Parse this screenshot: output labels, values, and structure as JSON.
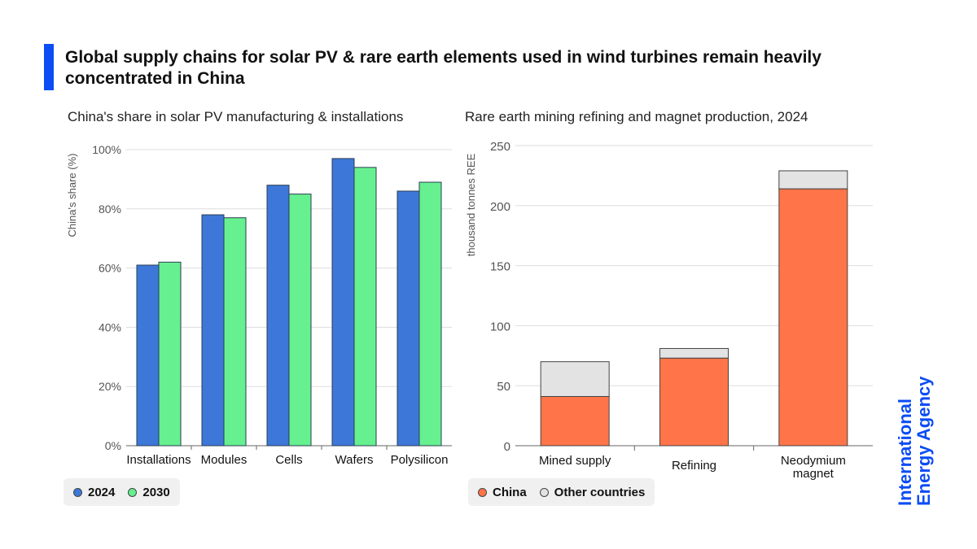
{
  "title": "Global supply chains for solar PV & rare earth elements used in wind turbines remain heavily concentrated in China",
  "logo": "International Energy Agency",
  "colors": {
    "accent": "#0b4cf5",
    "s2024": "#3d78d8",
    "s2030": "#66f08f",
    "china": "#ff7549",
    "other": "#e3e3e3"
  },
  "chart_data": [
    {
      "type": "bar",
      "title": "China's share in solar PV manufacturing & installations",
      "ylabel": "China's share (%)",
      "ylim": [
        0,
        100
      ],
      "yticks": [
        "0%",
        "20%",
        "40%",
        "60%",
        "80%",
        "100%"
      ],
      "grid": true,
      "legend": "bottom-left",
      "categories": [
        "Installations",
        "Modules",
        "Cells",
        "Wafers",
        "Polysilicon"
      ],
      "series": [
        {
          "name": "2024",
          "values": [
            61,
            78,
            88,
            97,
            86
          ]
        },
        {
          "name": "2030",
          "values": [
            62,
            77,
            85,
            94,
            89
          ]
        }
      ]
    },
    {
      "type": "bar",
      "stacked": true,
      "title": "Rare earth mining refining and magnet production, 2024",
      "ylabel": "thousand tonnes REE",
      "ylim": [
        0,
        250
      ],
      "yticks": [
        "0",
        "50",
        "100",
        "150",
        "200",
        "250"
      ],
      "grid": true,
      "legend": "bottom-left",
      "categories": [
        "Mined supply",
        "Refining",
        "Neodymium magnet"
      ],
      "series": [
        {
          "name": "China",
          "values": [
            41,
            73,
            214
          ]
        },
        {
          "name": "Other countries",
          "values": [
            29,
            8,
            15
          ]
        }
      ]
    }
  ]
}
